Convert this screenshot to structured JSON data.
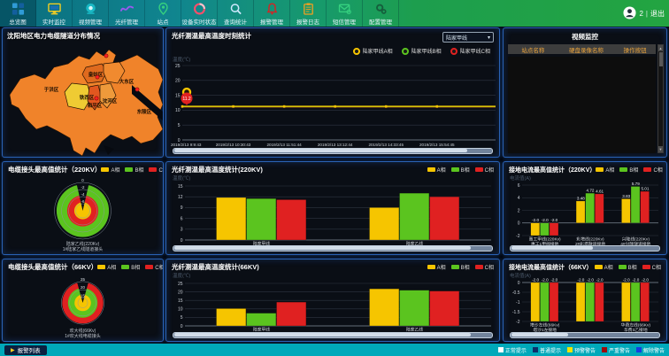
{
  "nav": {
    "items": [
      {
        "name": "overview",
        "icon": "grid-icon",
        "label": "总览图"
      },
      {
        "name": "realtime-monitor",
        "icon": "monitor-icon",
        "label": "实时监控"
      },
      {
        "name": "video-mgmt",
        "icon": "camera-icon",
        "label": "视频管理"
      },
      {
        "name": "fiber-mgmt",
        "icon": "fiber-wave-icon",
        "label": "光纤管理"
      },
      {
        "name": "sites",
        "icon": "map-pin-icon",
        "label": "站点"
      },
      {
        "name": "device-status",
        "icon": "status-circle-icon",
        "label": "设备实时状态"
      },
      {
        "name": "query-stats",
        "icon": "search-icon",
        "label": "查询统计"
      },
      {
        "name": "alarm-mgmt",
        "icon": "alarm-bell-icon",
        "label": "报警管理"
      },
      {
        "name": "alarm-log",
        "icon": "clipboard-icon",
        "label": "报警日志"
      },
      {
        "name": "sms-mgmt",
        "icon": "mail-icon",
        "label": "短信管理"
      },
      {
        "name": "config-mgmt",
        "icon": "gears-icon",
        "label": "配置管理"
      }
    ]
  },
  "user": {
    "count": "2",
    "divider": "|",
    "logout": "退出"
  },
  "map_panel": {
    "title": "沈阳地区电力电缆隧道分布情况",
    "districts": [
      "于洪区",
      "皇姑区",
      "大东区",
      "铁西区",
      "和平区",
      "沈河区",
      "东陵区"
    ]
  },
  "video_panel": {
    "title": "视频监控",
    "columns": [
      "站点名称",
      "硬盘录像名称",
      "操作按钮"
    ],
    "rows": []
  },
  "bottom_bar": {
    "alarm_list_label": "报警列表",
    "legend": [
      {
        "label": "正常提示",
        "color": "#ffffff"
      },
      {
        "label": "普通提示",
        "color": "#0b2f6b"
      },
      {
        "label": "预警警告",
        "color": "#f0e400"
      },
      {
        "label": "严重警告",
        "color": "#9e0b0b"
      },
      {
        "label": "解除警告",
        "color": "#1440e0"
      }
    ]
  },
  "colors": {
    "phase_a": "#F6C500",
    "phase_b": "#5BC41F",
    "phase_c": "#E02121",
    "map_base": "#F0832A"
  },
  "chart_data": [
    {
      "id": "fiber_time",
      "type": "line",
      "title": "光纤测温最高温度时刻统计",
      "selector": "陆家甲线",
      "ylabel": "温度(℃)",
      "ylim": [
        0,
        25
      ],
      "yticks": [
        0,
        5,
        10,
        15,
        20,
        25
      ],
      "x": [
        "2019/2/13 9:9:43",
        "2019/2/13 10:30:43",
        "2019/2/13 11:51:44",
        "2019/2/13 13:12:44",
        "2019/2/13 14:33:45",
        "2019/2/13 15:54:45"
      ],
      "series": [
        {
          "name": "陆家甲线A相",
          "color": "#F6C500",
          "values": [
            11.3,
            11.3,
            11.3,
            11.3,
            11.3,
            11.3
          ]
        },
        {
          "name": "陆家甲线B相",
          "color": "#5BC41F",
          "values": [
            11.2,
            11.2,
            11.2,
            11.2,
            11.2,
            11.2
          ]
        },
        {
          "name": "陆家甲线C相",
          "color": "#E02121",
          "values": [
            11.1,
            11.1,
            11.1,
            11.1,
            11.1,
            11.1
          ]
        }
      ],
      "marker": {
        "x_index": 0,
        "label": "11.2"
      },
      "legend_position": "top-right",
      "grid": true
    },
    {
      "id": "joint_220",
      "type": "polar",
      "title": "电缆接头最高值统计（220KV）",
      "ticks": [
        0,
        -2,
        -4,
        -6
      ],
      "outer_value": 0,
      "center_value": -8,
      "series": [
        {
          "name": "A相",
          "color": "#F6C500",
          "value": -5.6
        },
        {
          "name": "B相",
          "color": "#5BC41F",
          "value": -0.6
        },
        {
          "name": "C相",
          "color": "#E02121",
          "value": -3.6
        }
      ],
      "caption": [
        "陆家乙线(220Kv)",
        "1#陆家乙线隧道接头"
      ]
    },
    {
      "id": "joint_66",
      "type": "polar",
      "title": "电缆接头最高值统计（66KV）",
      "ticks": [
        25,
        20,
        15
      ],
      "outer_value": 26,
      "center_value": 12,
      "series": [
        {
          "name": "A相",
          "color": "#F6C500",
          "value": 17
        },
        {
          "name": "B相",
          "color": "#5BC41F",
          "value": 21
        },
        {
          "name": "C相",
          "color": "#E02121",
          "value": 24.5
        }
      ],
      "caption": [
        "欢大线(66Kv)",
        "1#欢大线电缆接头"
      ]
    },
    {
      "id": "temp_220",
      "type": "bar",
      "title": "光纤测温最高温度统计(220KV)",
      "ylabel": "温度(℃)",
      "ylim": [
        0,
        15
      ],
      "yticks": [
        0,
        3,
        6,
        9,
        12,
        15
      ],
      "categories": [
        "陆家甲线",
        "陆家乙线"
      ],
      "series": [
        {
          "name": "A相",
          "color": "#F6C500",
          "values": [
            11.8,
            9.0
          ]
        },
        {
          "name": "B相",
          "color": "#5BC41F",
          "values": [
            11.5,
            13.0
          ]
        },
        {
          "name": "C相",
          "color": "#E02121",
          "values": [
            11.2,
            12.0
          ]
        }
      ],
      "value_labels": false,
      "grid": true
    },
    {
      "id": "temp_66",
      "type": "bar",
      "title": "光纤测温最高温度统计(66KV)",
      "ylabel": "温度(℃)",
      "ylim": [
        0,
        25
      ],
      "yticks": [
        0,
        5,
        10,
        15,
        20,
        25
      ],
      "categories": [
        "陆家甲线",
        "陆家乙线"
      ],
      "series": [
        {
          "name": "A相",
          "color": "#F6C500",
          "values": [
            10.2,
            21.8
          ]
        },
        {
          "name": "B相",
          "color": "#5BC41F",
          "values": [
            7.5,
            21.0
          ]
        },
        {
          "name": "C相",
          "color": "#E02121",
          "values": [
            14.0,
            20.5
          ]
        }
      ],
      "value_labels": false,
      "grid": true
    },
    {
      "id": "ground_220",
      "type": "bar",
      "title": "接地电流最高值统计（220KV）",
      "ylabel": "电流值(A)",
      "ylim": [
        -2,
        6
      ],
      "yticks": [
        -2,
        0,
        2,
        4,
        6
      ],
      "categories": [
        "惠工甲线(220Kv)\n惠工1甲线接地",
        "彩塔线(220Kv)\n2#彩塔隧道接地",
        "兴隆线(220Kv)\n4#兴隆隧道接地"
      ],
      "series": [
        {
          "name": "A相",
          "color": "#F6C500",
          "values": [
            -2.0,
            3.48,
            3.83
          ]
        },
        {
          "name": "B相",
          "color": "#5BC41F",
          "values": [
            -2.0,
            4.72,
            5.79
          ]
        },
        {
          "name": "C相",
          "color": "#E02121",
          "values": [
            -2.0,
            4.61,
            5.01
          ]
        }
      ],
      "value_labels": true,
      "grid": true
    },
    {
      "id": "ground_66",
      "type": "bar",
      "title": "接地电流最高值统计（66KV）",
      "ylabel": "电流值(A)",
      "ylim": [
        -2,
        0
      ],
      "yticks": [
        0,
        -0.5,
        -1,
        -1.5,
        -2
      ],
      "categories": [
        "塔沙左线(66Kv)\n塔沙1左接地",
        "",
        "华费左线(66Kv)\n华费3乙接地"
      ],
      "series": [
        {
          "name": "A相",
          "color": "#F6C500",
          "values": [
            -2.0,
            -2.0,
            -2.0
          ]
        },
        {
          "name": "B相",
          "color": "#5BC41F",
          "values": [
            -2.0,
            -2.0,
            -2.0
          ]
        },
        {
          "name": "C相",
          "color": "#E02121",
          "values": [
            -2.0,
            -2.0,
            -2.0
          ]
        }
      ],
      "value_labels": true,
      "grid": true
    }
  ]
}
